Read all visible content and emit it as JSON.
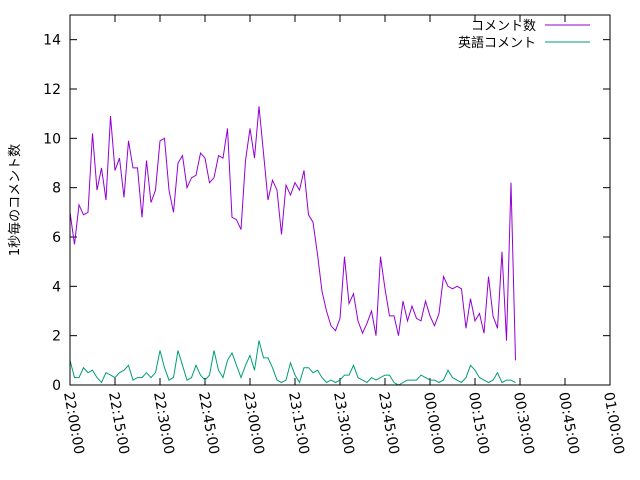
{
  "chart_data": {
    "type": "line",
    "title": "",
    "xlabel": "",
    "ylabel": "1秒毎のコメント数",
    "ylim": [
      0,
      15
    ],
    "yticks": [
      0,
      2,
      4,
      6,
      8,
      10,
      12,
      14
    ],
    "xlim": [
      "22:00:00",
      "01:00:00"
    ],
    "xticks": [
      "22:00:00",
      "22:15:00",
      "22:30:00",
      "22:45:00",
      "23:00:00",
      "23:15:00",
      "23:30:00",
      "23:45:00",
      "00:00:00",
      "00:15:00",
      "00:30:00",
      "00:45:00",
      "01:00:00"
    ],
    "grid": false,
    "legend_position": "top-right",
    "x_step": "00:01:30",
    "series": [
      {
        "name": "コメント数",
        "color": "#9400d3",
        "values": [
          7.0,
          5.7,
          7.3,
          6.9,
          7.0,
          10.2,
          7.9,
          8.8,
          7.5,
          10.9,
          8.7,
          9.2,
          7.6,
          9.9,
          8.8,
          8.8,
          6.8,
          9.1,
          7.4,
          7.9,
          9.9,
          10.0,
          7.9,
          7.0,
          9.0,
          9.3,
          8.0,
          8.4,
          8.5,
          9.4,
          9.2,
          8.2,
          8.4,
          9.3,
          9.2,
          10.4,
          6.8,
          6.7,
          6.3,
          9.1,
          10.4,
          9.2,
          11.3,
          9.4,
          7.5,
          8.3,
          7.9,
          6.1,
          8.1,
          7.7,
          8.2,
          7.9,
          8.7,
          6.9,
          6.6,
          5.3,
          3.8,
          3.0,
          2.4,
          2.2,
          2.7,
          5.2,
          3.3,
          3.7,
          2.6,
          2.1,
          2.5,
          3.0,
          2.0,
          5.2,
          3.9,
          2.8,
          2.8,
          2.0,
          3.4,
          2.6,
          3.2,
          2.7,
          2.6,
          3.4,
          2.8,
          2.4,
          2.9,
          4.4,
          4.0,
          3.9,
          4.0,
          3.9,
          2.3,
          3.5,
          2.6,
          2.9,
          2.1,
          4.4,
          2.8,
          2.3,
          5.4,
          1.8,
          8.2,
          1.0
        ]
      },
      {
        "name": "英語コメント",
        "color": "#009e73",
        "values": [
          1.0,
          0.3,
          0.3,
          0.7,
          0.5,
          0.6,
          0.3,
          0.1,
          0.5,
          0.4,
          0.3,
          0.5,
          0.6,
          0.8,
          0.2,
          0.3,
          0.3,
          0.5,
          0.3,
          0.5,
          1.4,
          0.7,
          0.2,
          0.3,
          1.4,
          0.8,
          0.2,
          0.3,
          0.8,
          0.4,
          0.2,
          0.4,
          1.4,
          0.6,
          0.3,
          1.0,
          1.3,
          0.8,
          0.3,
          0.8,
          1.2,
          0.6,
          1.8,
          1.1,
          1.1,
          0.7,
          0.2,
          0.1,
          0.2,
          0.9,
          0.4,
          0.1,
          0.7,
          0.7,
          0.5,
          0.6,
          0.3,
          0.1,
          0.2,
          0.1,
          0.2,
          0.4,
          0.4,
          0.8,
          0.3,
          0.2,
          0.1,
          0.3,
          0.2,
          0.3,
          0.4,
          0.4,
          0.1,
          0.0,
          0.1,
          0.2,
          0.2,
          0.2,
          0.4,
          0.3,
          0.2,
          0.2,
          0.1,
          0.2,
          0.6,
          0.3,
          0.2,
          0.1,
          0.3,
          0.8,
          0.6,
          0.3,
          0.2,
          0.1,
          0.2,
          0.5,
          0.1,
          0.2,
          0.2,
          0.1
        ]
      }
    ]
  }
}
